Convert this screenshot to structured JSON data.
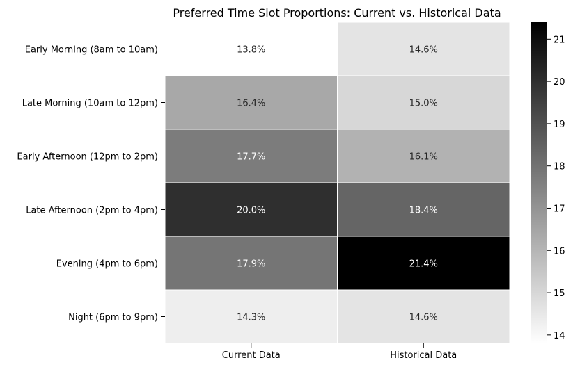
{
  "chart_data": {
    "type": "heatmap",
    "title": "Preferred Time Slot Proportions: Current vs. Historical Data",
    "xlabel": "",
    "ylabel": "",
    "columns": [
      "Current Data",
      "Historical Data"
    ],
    "rows": [
      "Early Morning (8am to 10am)",
      "Late Morning (10am to 12pm)",
      "Early Afternoon (12pm to 2pm)",
      "Late Afternoon (2pm to 4pm)",
      "Evening (4pm to 6pm)",
      "Night (6pm to 9pm)"
    ],
    "values": [
      [
        13.8,
        14.6
      ],
      [
        16.4,
        15.0
      ],
      [
        17.7,
        16.1
      ],
      [
        20.0,
        18.4
      ],
      [
        17.9,
        21.4
      ],
      [
        14.3,
        14.6
      ]
    ],
    "value_format_suffix": "%",
    "color_scale": {
      "min": 13.8,
      "max": 21.4,
      "low_color": "#ffffff",
      "high_color": "#000000",
      "ticks": [
        14,
        15,
        16,
        17,
        18,
        19,
        20,
        21
      ]
    },
    "legend": "right"
  }
}
